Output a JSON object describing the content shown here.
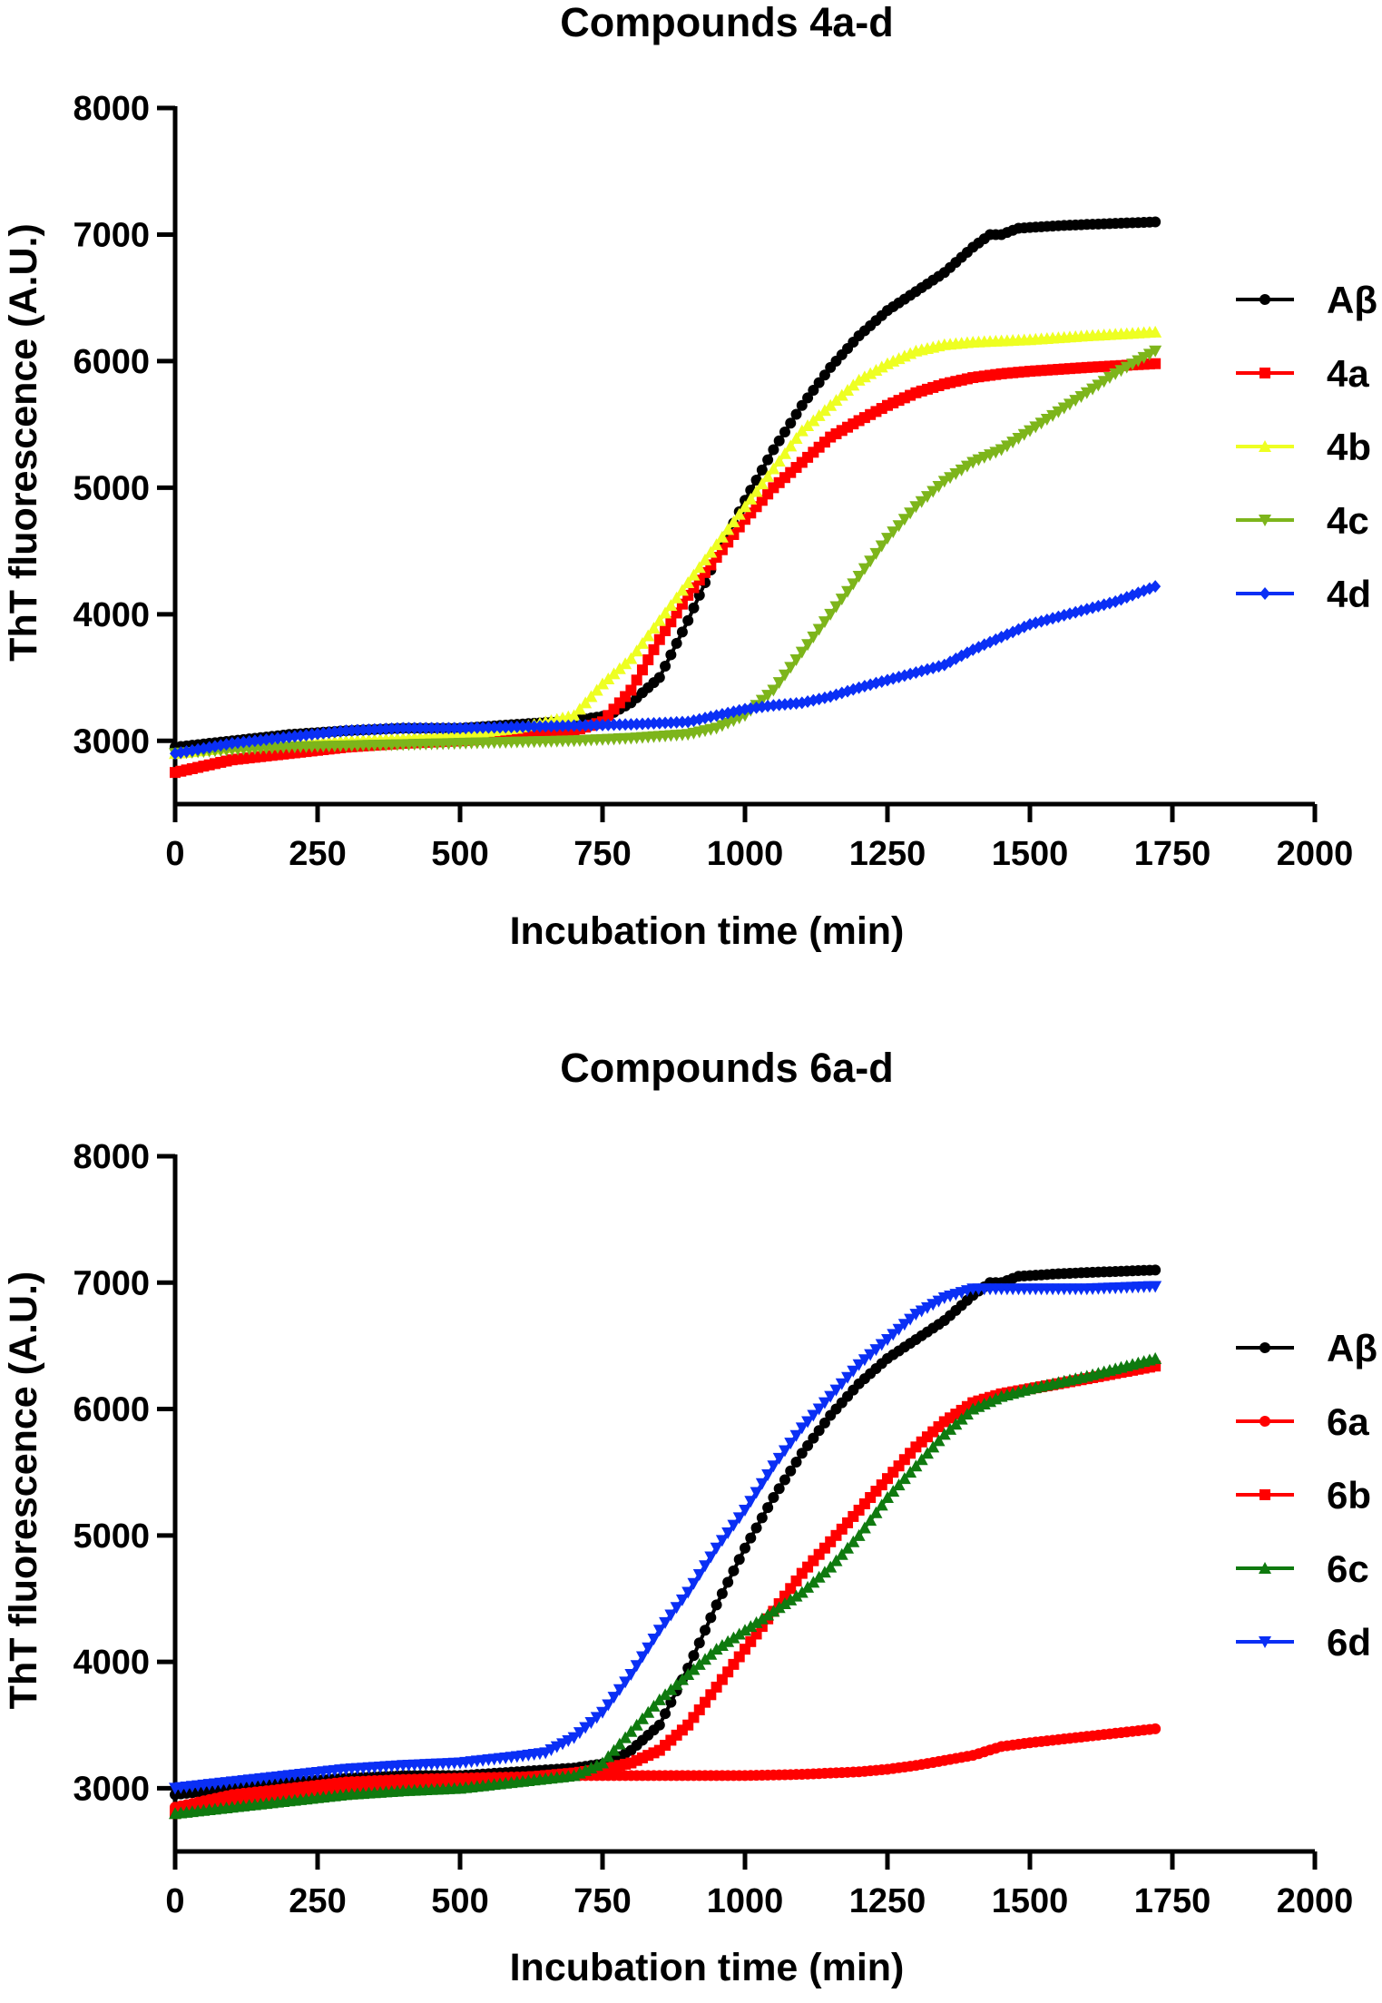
{
  "chart_data": [
    {
      "type": "line",
      "title": "Compounds 4a-d",
      "xlabel": "Incubation time (min)",
      "ylabel": "ThT fluorescence (A.U.)",
      "xlim": [
        0,
        2000
      ],
      "ylim": [
        2500,
        8000
      ],
      "xticks": [
        0,
        250,
        500,
        750,
        1000,
        1250,
        1500,
        1750,
        2000
      ],
      "yticks": [
        3000,
        4000,
        5000,
        6000,
        7000,
        8000
      ],
      "xtick_labels": [
        "0",
        "250",
        "500",
        "750",
        "1000",
        "1250",
        "1500",
        "1750",
        "2000"
      ],
      "ytick_labels": [
        "3000",
        "4000",
        "5000",
        "6000",
        "7000",
        "8000"
      ],
      "grid": false,
      "legend_position": "right",
      "series": [
        {
          "name": "Aβ",
          "color": "#000000",
          "marker": "circle",
          "x": [
            0,
            100,
            200,
            300,
            400,
            500,
            600,
            700,
            760,
            800,
            850,
            900,
            950,
            1000,
            1050,
            1100,
            1150,
            1200,
            1250,
            1300,
            1350,
            1400,
            1430,
            1450,
            1480,
            1550,
            1600,
            1720
          ],
          "y": [
            2950,
            3000,
            3050,
            3080,
            3100,
            3100,
            3130,
            3160,
            3200,
            3300,
            3500,
            3950,
            4450,
            4900,
            5300,
            5650,
            5950,
            6200,
            6400,
            6550,
            6700,
            6900,
            7000,
            7000,
            7050,
            7070,
            7080,
            7100
          ]
        },
        {
          "name": "4a",
          "color": "#ff0000",
          "marker": "square",
          "x": [
            0,
            100,
            200,
            300,
            400,
            500,
            600,
            700,
            750,
            800,
            850,
            900,
            950,
            1000,
            1050,
            1100,
            1150,
            1200,
            1250,
            1300,
            1350,
            1400,
            1450,
            1500,
            1600,
            1720
          ],
          "y": [
            2750,
            2850,
            2900,
            2950,
            2980,
            3000,
            3030,
            3080,
            3150,
            3400,
            3800,
            4150,
            4450,
            4750,
            5000,
            5200,
            5400,
            5530,
            5650,
            5750,
            5820,
            5870,
            5900,
            5920,
            5950,
            5980
          ]
        },
        {
          "name": "4b",
          "color": "#eeff22",
          "marker": "triangle-up",
          "x": [
            0,
            100,
            200,
            300,
            400,
            500,
            600,
            700,
            750,
            800,
            850,
            900,
            950,
            1000,
            1050,
            1100,
            1150,
            1200,
            1250,
            1300,
            1350,
            1400,
            1500,
            1600,
            1720
          ],
          "y": [
            2900,
            2950,
            2980,
            3000,
            3020,
            3050,
            3100,
            3200,
            3450,
            3650,
            3950,
            4250,
            4550,
            4850,
            5150,
            5450,
            5650,
            5850,
            5980,
            6080,
            6130,
            6150,
            6170,
            6200,
            6230
          ]
        },
        {
          "name": "4c",
          "color": "#7db51b",
          "marker": "triangle-down",
          "x": [
            0,
            100,
            200,
            300,
            400,
            500,
            600,
            700,
            800,
            900,
            950,
            1000,
            1050,
            1100,
            1150,
            1200,
            1250,
            1300,
            1350,
            1400,
            1450,
            1500,
            1550,
            1600,
            1650,
            1720
          ],
          "y": [
            2900,
            2930,
            2950,
            2960,
            2970,
            2980,
            2990,
            3000,
            3020,
            3050,
            3100,
            3200,
            3400,
            3700,
            4000,
            4300,
            4600,
            4850,
            5050,
            5200,
            5300,
            5450,
            5600,
            5750,
            5900,
            6080
          ]
        },
        {
          "name": "4d",
          "color": "#0a2ff5",
          "marker": "diamond",
          "x": [
            0,
            100,
            200,
            300,
            400,
            500,
            600,
            700,
            800,
            900,
            950,
            1000,
            1050,
            1100,
            1150,
            1200,
            1250,
            1300,
            1350,
            1400,
            1450,
            1500,
            1550,
            1600,
            1650,
            1720
          ],
          "y": [
            2900,
            2980,
            3030,
            3080,
            3100,
            3100,
            3110,
            3120,
            3130,
            3150,
            3200,
            3250,
            3280,
            3300,
            3350,
            3420,
            3480,
            3540,
            3600,
            3720,
            3820,
            3920,
            3980,
            4040,
            4100,
            4220
          ]
        }
      ]
    },
    {
      "type": "line",
      "title": "Compounds 6a-d",
      "xlabel": "Incubation time (min)",
      "ylabel": "ThT fluorescence (A.U.)",
      "xlim": [
        0,
        2000
      ],
      "ylim": [
        2500,
        8000
      ],
      "xticks": [
        0,
        250,
        500,
        750,
        1000,
        1250,
        1500,
        1750,
        2000
      ],
      "yticks": [
        3000,
        4000,
        5000,
        6000,
        7000,
        8000
      ],
      "xtick_labels": [
        "0",
        "250",
        "500",
        "750",
        "1000",
        "1250",
        "1500",
        "1750",
        "2000"
      ],
      "ytick_labels": [
        "3000",
        "4000",
        "5000",
        "6000",
        "7000",
        "8000"
      ],
      "grid": false,
      "legend_position": "right",
      "series": [
        {
          "name": "Aβ",
          "color": "#000000",
          "marker": "circle",
          "x": [
            0,
            100,
            200,
            300,
            400,
            500,
            600,
            700,
            760,
            800,
            850,
            900,
            950,
            1000,
            1050,
            1100,
            1150,
            1200,
            1250,
            1300,
            1350,
            1400,
            1430,
            1450,
            1480,
            1550,
            1600,
            1720
          ],
          "y": [
            2950,
            3000,
            3050,
            3080,
            3100,
            3100,
            3130,
            3160,
            3200,
            3300,
            3500,
            3950,
            4450,
            4900,
            5300,
            5650,
            5950,
            6200,
            6400,
            6550,
            6700,
            6900,
            7000,
            7000,
            7050,
            7070,
            7080,
            7100
          ]
        },
        {
          "name": "6a",
          "color": "#ff0000",
          "marker": "circle",
          "x": [
            0,
            100,
            200,
            300,
            400,
            500,
            600,
            700,
            800,
            900,
            1000,
            1100,
            1200,
            1250,
            1300,
            1350,
            1400,
            1450,
            1500,
            1600,
            1720
          ],
          "y": [
            2850,
            2950,
            3000,
            3050,
            3070,
            3080,
            3090,
            3100,
            3100,
            3100,
            3100,
            3110,
            3130,
            3150,
            3180,
            3220,
            3260,
            3330,
            3360,
            3410,
            3470
          ]
        },
        {
          "name": "6b",
          "color": "#ff0000",
          "marker": "square",
          "x": [
            0,
            100,
            200,
            300,
            400,
            500,
            600,
            700,
            750,
            800,
            850,
            900,
            950,
            1000,
            1050,
            1100,
            1150,
            1200,
            1250,
            1300,
            1350,
            1400,
            1450,
            1500,
            1600,
            1720
          ],
          "y": [
            2800,
            2900,
            2950,
            3000,
            3020,
            3050,
            3080,
            3120,
            3150,
            3200,
            3300,
            3500,
            3800,
            4100,
            4400,
            4700,
            4950,
            5200,
            5450,
            5700,
            5900,
            6050,
            6120,
            6160,
            6240,
            6340
          ]
        },
        {
          "name": "6c",
          "color": "#0f7a0f",
          "marker": "triangle-up",
          "x": [
            0,
            100,
            200,
            300,
            400,
            500,
            600,
            700,
            750,
            800,
            850,
            900,
            950,
            1000,
            1050,
            1100,
            1150,
            1200,
            1250,
            1300,
            1350,
            1400,
            1450,
            1500,
            1600,
            1720
          ],
          "y": [
            2800,
            2850,
            2900,
            2950,
            2980,
            3000,
            3050,
            3100,
            3200,
            3450,
            3700,
            3900,
            4100,
            4250,
            4400,
            4550,
            4750,
            5000,
            5300,
            5550,
            5800,
            6000,
            6100,
            6160,
            6260,
            6400
          ]
        },
        {
          "name": "6d",
          "color": "#0a2ff5",
          "marker": "triangle-down",
          "x": [
            0,
            100,
            200,
            300,
            400,
            500,
            600,
            650,
            700,
            750,
            800,
            850,
            900,
            950,
            1000,
            1050,
            1100,
            1150,
            1200,
            1250,
            1300,
            1350,
            1400,
            1450,
            1500,
            1600,
            1720
          ],
          "y": [
            3000,
            3050,
            3100,
            3150,
            3180,
            3200,
            3250,
            3280,
            3400,
            3600,
            3900,
            4250,
            4550,
            4900,
            5200,
            5550,
            5850,
            6100,
            6350,
            6550,
            6750,
            6880,
            6950,
            6950,
            6950,
            6950,
            6970
          ]
        }
      ]
    }
  ]
}
